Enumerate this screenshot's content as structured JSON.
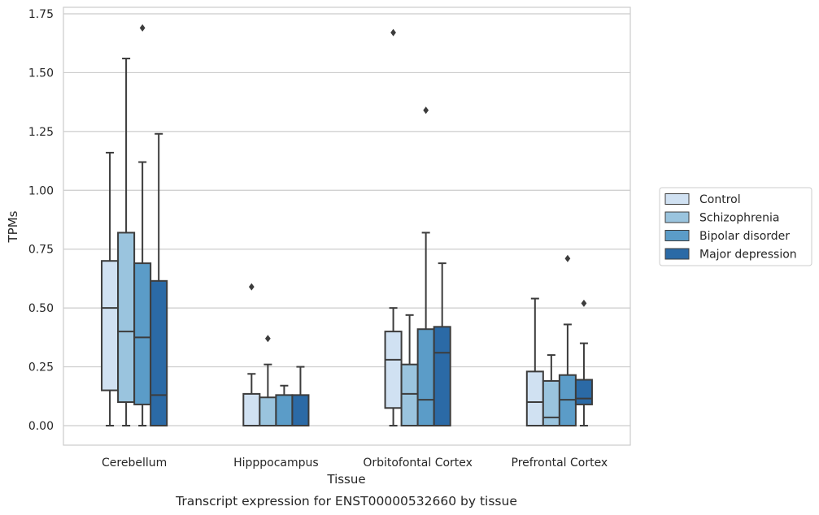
{
  "chart_data": {
    "type": "box",
    "xlabel": "Tissue",
    "ylabel": "TPMs",
    "caption": "Transcript expression for ENST00000532660 by tissue",
    "ylim": [
      -0.08,
      1.77
    ],
    "yticks": [
      "0.00",
      "0.25",
      "0.50",
      "0.75",
      "1.00",
      "1.25",
      "1.50",
      "1.75"
    ],
    "grid": "horizontal",
    "legend_position": "right",
    "categories": [
      "Cerebellum",
      "Hipppocampus",
      "Orbitofontal Cortex",
      "Prefrontal Cortex"
    ],
    "series": [
      {
        "name": "Control",
        "color": "#d0e1f2",
        "boxes": [
          {
            "whislo": 0.0,
            "q1": 0.15,
            "med": 0.5,
            "q3": 0.7,
            "whishi": 1.16,
            "fliers": []
          },
          {
            "whislo": 0.0,
            "q1": 0.0,
            "med": 0.0,
            "q3": 0.135,
            "whishi": 0.22,
            "fliers": [
              0.59
            ]
          },
          {
            "whislo": 0.0,
            "q1": 0.075,
            "med": 0.28,
            "q3": 0.4,
            "whishi": 0.5,
            "fliers": [
              1.67
            ]
          },
          {
            "whislo": 0.0,
            "q1": 0.0,
            "med": 0.1,
            "q3": 0.23,
            "whishi": 0.54,
            "fliers": []
          }
        ]
      },
      {
        "name": "Schizophrenia",
        "color": "#9ac4de",
        "boxes": [
          {
            "whislo": 0.0,
            "q1": 0.1,
            "med": 0.4,
            "q3": 0.82,
            "whishi": 1.56,
            "fliers": []
          },
          {
            "whislo": 0.0,
            "q1": 0.0,
            "med": 0.0,
            "q3": 0.12,
            "whishi": 0.26,
            "fliers": [
              0.37
            ]
          },
          {
            "whislo": 0.0,
            "q1": 0.0,
            "med": 0.135,
            "q3": 0.26,
            "whishi": 0.47,
            "fliers": []
          },
          {
            "whislo": 0.0,
            "q1": 0.0,
            "med": 0.035,
            "q3": 0.19,
            "whishi": 0.3,
            "fliers": []
          }
        ]
      },
      {
        "name": "Bipolar disorder",
        "color": "#5b9cc8",
        "boxes": [
          {
            "whislo": 0.0,
            "q1": 0.09,
            "med": 0.375,
            "q3": 0.69,
            "whishi": 1.12,
            "fliers": [
              1.69
            ]
          },
          {
            "whislo": 0.0,
            "q1": 0.0,
            "med": 0.0,
            "q3": 0.13,
            "whishi": 0.17,
            "fliers": []
          },
          {
            "whislo": 0.0,
            "q1": 0.0,
            "med": 0.11,
            "q3": 0.41,
            "whishi": 0.82,
            "fliers": [
              1.34
            ]
          },
          {
            "whislo": 0.0,
            "q1": 0.0,
            "med": 0.11,
            "q3": 0.215,
            "whishi": 0.43,
            "fliers": [
              0.71
            ]
          }
        ]
      },
      {
        "name": "Major depression",
        "color": "#2b6aa6",
        "boxes": [
          {
            "whislo": 0.0,
            "q1": 0.0,
            "med": 0.13,
            "q3": 0.615,
            "whishi": 1.24,
            "fliers": []
          },
          {
            "whislo": 0.0,
            "q1": 0.0,
            "med": 0.0,
            "q3": 0.13,
            "whishi": 0.25,
            "fliers": []
          },
          {
            "whislo": 0.0,
            "q1": 0.0,
            "med": 0.31,
            "q3": 0.42,
            "whishi": 0.69,
            "fliers": []
          },
          {
            "whislo": 0.0,
            "q1": 0.09,
            "med": 0.115,
            "q3": 0.195,
            "whishi": 0.35,
            "fliers": [
              0.52
            ]
          }
        ]
      }
    ]
  }
}
